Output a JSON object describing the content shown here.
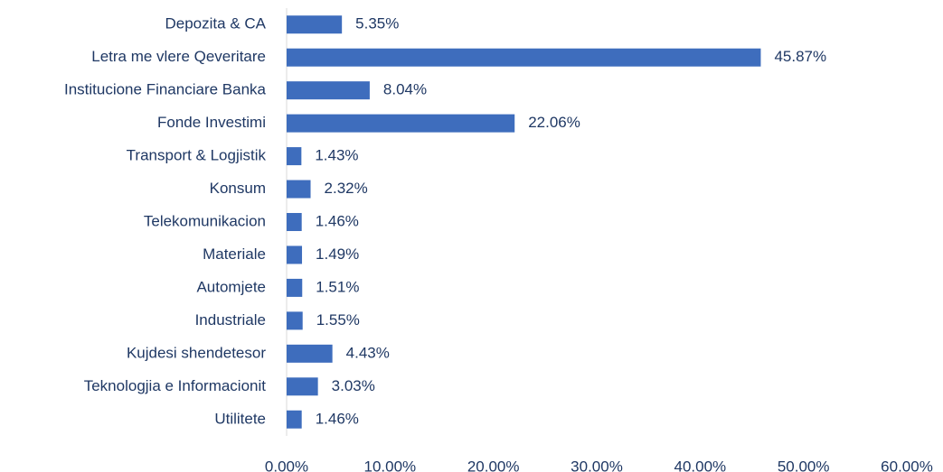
{
  "chart_data": {
    "type": "bar",
    "orientation": "horizontal",
    "categories": [
      "Depozita & CA",
      "Letra me vlere Qeveritare",
      "Institucione Financiare Banka",
      "Fonde Investimi",
      "Transport & Logjistik",
      "Konsum",
      "Telekomunikacion",
      "Materiale",
      "Automjete",
      "Industriale",
      "Kujdesi shendetesor",
      "Teknologjia e Informacionit",
      "Utilitete"
    ],
    "values": [
      5.35,
      45.87,
      8.04,
      22.06,
      1.43,
      2.32,
      1.46,
      1.49,
      1.51,
      1.55,
      4.43,
      3.03,
      1.46
    ],
    "value_labels": [
      "5.35%",
      "45.87%",
      "8.04%",
      "22.06%",
      "1.43%",
      "2.32%",
      "1.46%",
      "1.49%",
      "1.51%",
      "1.55%",
      "4.43%",
      "3.03%",
      "1.46%"
    ],
    "color": "#3e6dbd",
    "xlim": [
      0,
      60
    ],
    "xticks": [
      {
        "value": 0,
        "label": "0.00%"
      },
      {
        "value": 10,
        "label": "10.00%"
      },
      {
        "value": 20,
        "label": "20.00%"
      },
      {
        "value": 30,
        "label": "30.00%"
      },
      {
        "value": 40,
        "label": "40.00%"
      },
      {
        "value": 50,
        "label": "50.00%"
      },
      {
        "value": 60,
        "label": "60.00%"
      }
    ],
    "grid": false
  }
}
